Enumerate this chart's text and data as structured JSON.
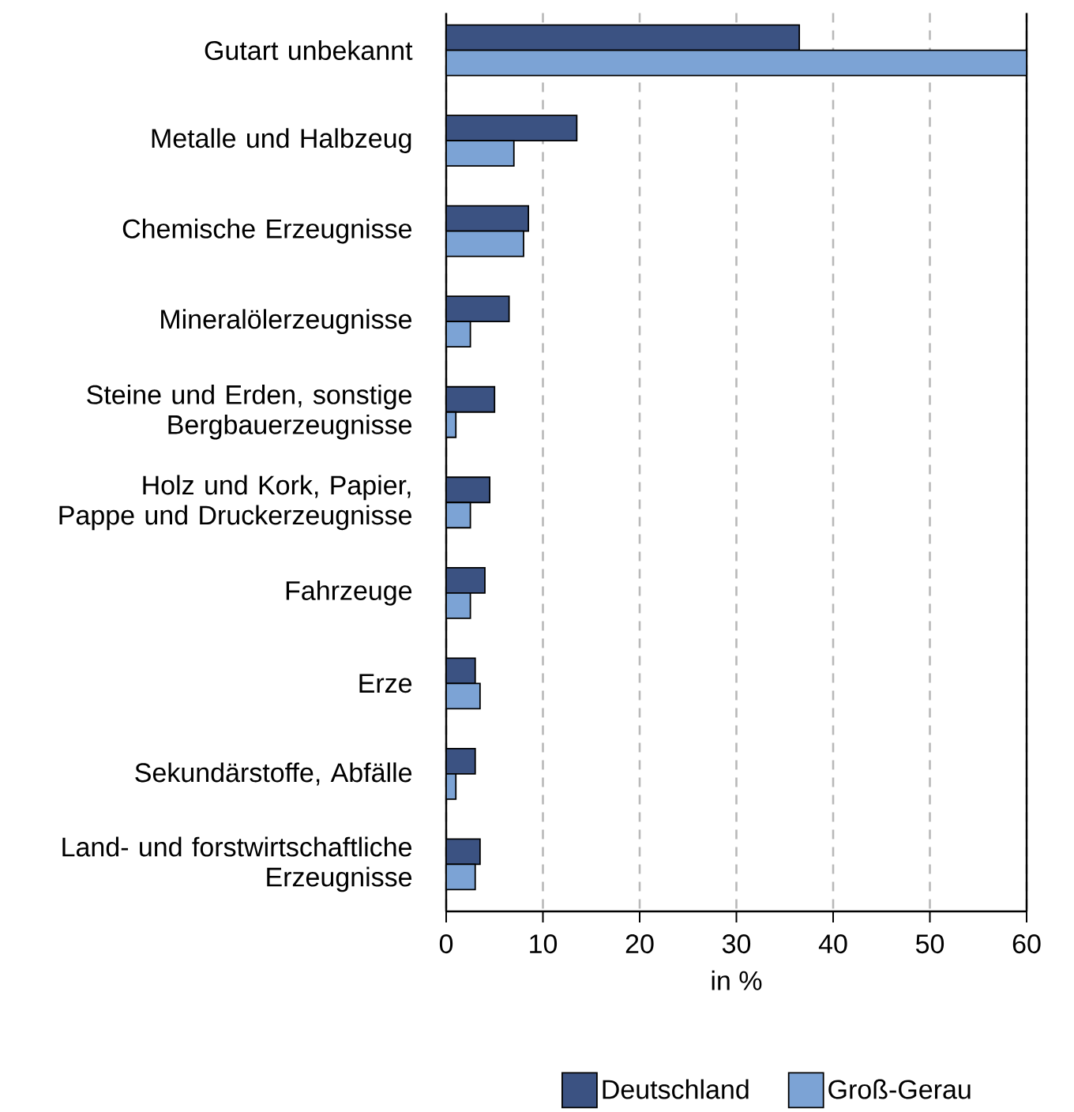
{
  "chart_data": {
    "type": "bar",
    "orientation": "horizontal",
    "xlabel": "in %",
    "categories": [
      "Gutart unbekannt",
      "Metalle und Halbzeug",
      "Chemische Erzeugnisse",
      "Mineralölerzeugnisse",
      "Steine und Erden, sonstige Bergbauerzeugnisse",
      "Holz und Kork, Papier, Pappe und Druckerzeugnisse",
      "Fahrzeuge",
      "Erze",
      "Sekundärstoffe, Abfälle",
      "Land- und forstwirtschaftliche Erzeugnisse"
    ],
    "series": [
      {
        "name": "Deutschland",
        "color": "#3b5282",
        "values": [
          36.5,
          13.5,
          8.5,
          6.5,
          5,
          4.5,
          4,
          3,
          3,
          3.5
        ]
      },
      {
        "name": "Groß-Gerau",
        "color": "#7ca3d5",
        "values": [
          60,
          7,
          8,
          2.5,
          1,
          2.5,
          2.5,
          3.5,
          1,
          3
        ]
      }
    ],
    "xlim": [
      0,
      60
    ],
    "xticks": [
      0,
      10,
      20,
      30,
      40,
      50,
      60
    ],
    "grid": "x",
    "legend": "bottom"
  }
}
